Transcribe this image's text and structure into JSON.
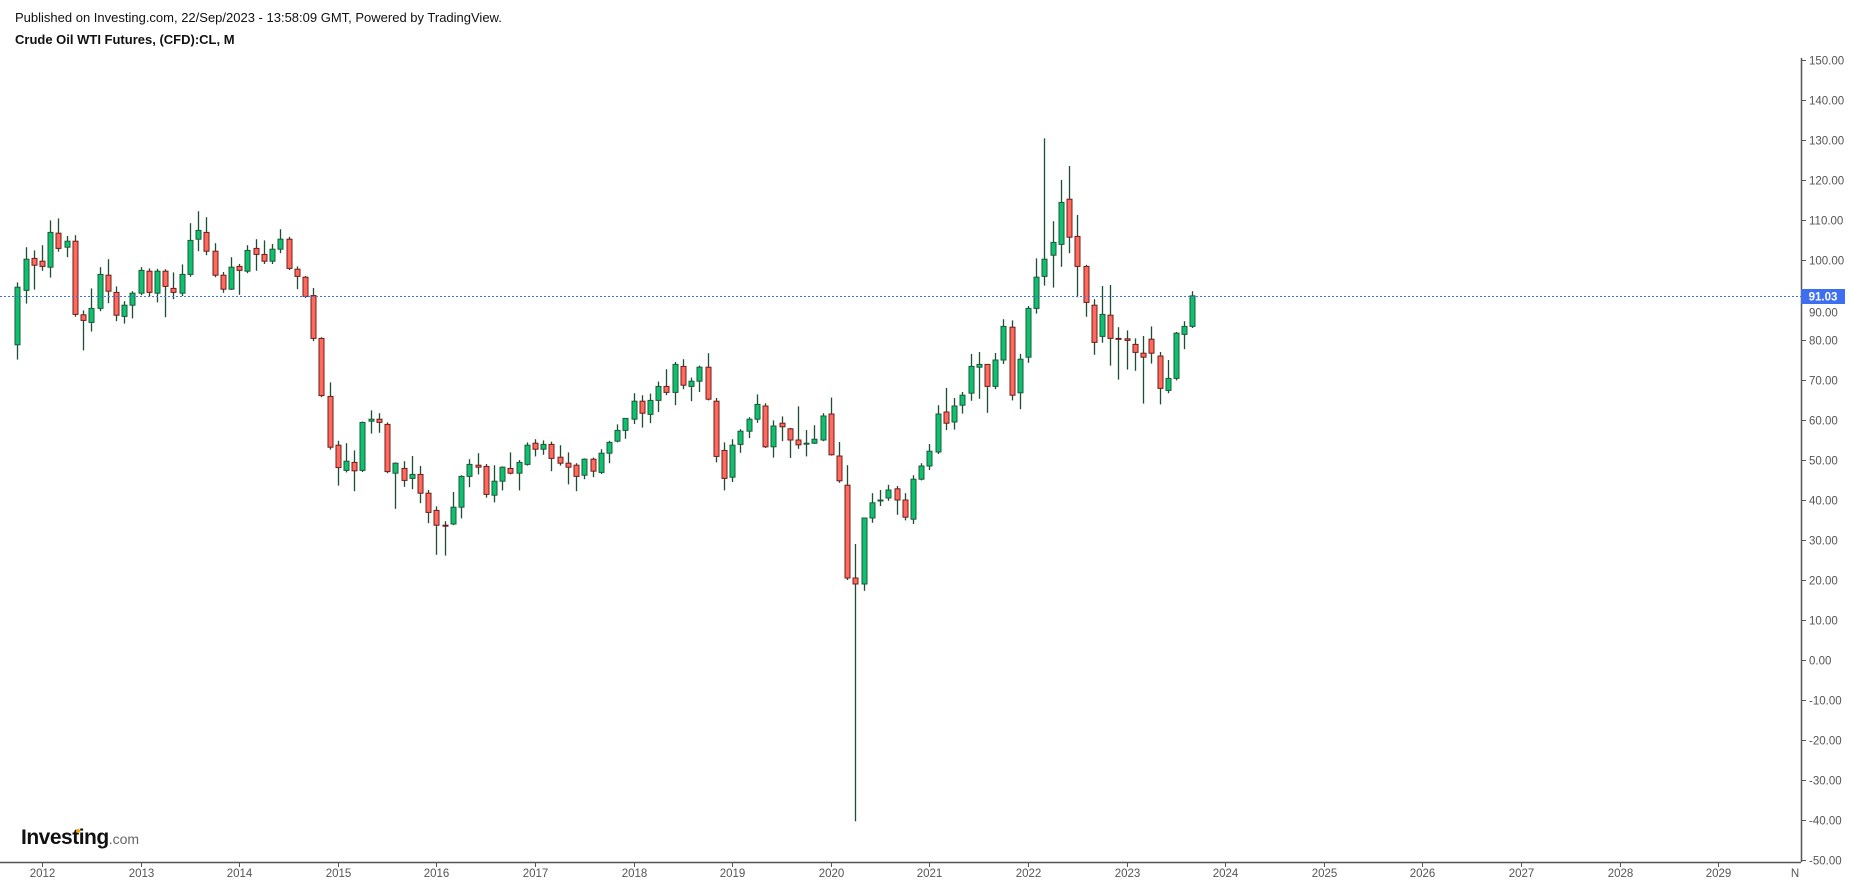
{
  "header": {
    "published": "Published on Investing.com, 22/Sep/2023 - 13:58:09 GMT, Powered by TradingView.",
    "title": "Crude Oil WTI Futures, (CFD):CL, M"
  },
  "logo": {
    "main": "Investing",
    "suffix": ".com"
  },
  "colors": {
    "up": "#0dc16f",
    "up_border": "#1a5a38",
    "down": "#ff6a5c",
    "down_border": "#6e1c1c",
    "wick": "#1d4f35",
    "price_line": "#3d6ff0"
  },
  "chart_data": {
    "type": "candlestick",
    "title": "Crude Oil WTI Futures, (CFD):CL, M",
    "interval": "monthly",
    "start": "2011-10",
    "ohlc_fields": [
      "open",
      "high",
      "low",
      "close"
    ],
    "ohlc": [
      [
        78.8,
        94.4,
        75.1,
        93.2
      ],
      [
        92.4,
        103.2,
        89.1,
        100.2
      ],
      [
        100.4,
        102.4,
        92.6,
        98.7
      ],
      [
        99.7,
        103.7,
        97.3,
        98.4
      ],
      [
        98.2,
        109.9,
        95.6,
        106.9
      ],
      [
        106.7,
        110.4,
        102.1,
        102.9
      ],
      [
        103.2,
        106.0,
        100.7,
        104.7
      ],
      [
        104.7,
        106.2,
        85.8,
        86.4
      ],
      [
        86.3,
        87.4,
        77.4,
        84.9
      ],
      [
        84.4,
        92.9,
        82.1,
        87.9
      ],
      [
        87.9,
        98.2,
        87.2,
        96.4
      ],
      [
        96.2,
        100.2,
        89.2,
        92.2
      ],
      [
        91.9,
        93.4,
        84.7,
        86.2
      ],
      [
        85.9,
        89.7,
        84.1,
        88.7
      ],
      [
        88.7,
        92.2,
        85.4,
        91.7
      ],
      [
        91.7,
        98.2,
        91.2,
        97.4
      ],
      [
        97.2,
        97.9,
        90.9,
        91.9
      ],
      [
        91.7,
        97.8,
        89.4,
        97.2
      ],
      [
        97.2,
        97.7,
        85.7,
        93.4
      ],
      [
        92.9,
        96.9,
        90.2,
        91.9
      ],
      [
        91.7,
        98.9,
        91.0,
        96.4
      ],
      [
        96.4,
        109.2,
        95.8,
        104.9
      ],
      [
        105.2,
        112.2,
        102.2,
        107.4
      ],
      [
        106.9,
        110.7,
        101.2,
        102.2
      ],
      [
        102.2,
        104.2,
        95.7,
        96.2
      ],
      [
        96.2,
        97.0,
        91.8,
        92.7
      ],
      [
        92.7,
        100.7,
        92.5,
        98.2
      ],
      [
        98.4,
        99.0,
        91.3,
        97.4
      ],
      [
        97.2,
        103.7,
        96.7,
        102.4
      ],
      [
        102.9,
        105.2,
        97.3,
        101.4
      ],
      [
        101.4,
        104.9,
        99.0,
        99.7
      ],
      [
        99.7,
        104.0,
        99.0,
        102.7
      ],
      [
        102.7,
        107.7,
        101.7,
        105.2
      ],
      [
        105.2,
        105.8,
        97.5,
        97.9
      ],
      [
        97.7,
        98.4,
        92.7,
        95.9
      ],
      [
        95.7,
        96.0,
        90.5,
        90.9
      ],
      [
        91.1,
        93.0,
        79.7,
        80.4
      ],
      [
        80.4,
        80.7,
        65.7,
        66.1
      ],
      [
        65.9,
        69.4,
        52.6,
        53.2
      ],
      [
        53.7,
        54.8,
        43.6,
        48.1
      ],
      [
        47.4,
        54.2,
        46.9,
        49.7
      ],
      [
        49.4,
        52.4,
        42.2,
        47.3
      ],
      [
        47.4,
        59.6,
        47.0,
        59.4
      ],
      [
        59.7,
        62.4,
        56.6,
        60.2
      ],
      [
        60.2,
        61.7,
        56.8,
        59.4
      ],
      [
        58.9,
        59.4,
        46.7,
        47.1
      ],
      [
        46.7,
        49.4,
        37.8,
        49.2
      ],
      [
        47.9,
        49.7,
        43.3,
        44.9
      ],
      [
        45.4,
        51.0,
        42.7,
        46.4
      ],
      [
        46.4,
        48.5,
        39.2,
        41.7
      ],
      [
        41.7,
        42.5,
        34.2,
        36.9
      ],
      [
        37.4,
        38.4,
        26.3,
        33.7
      ],
      [
        33.7,
        34.7,
        26.1,
        33.6
      ],
      [
        34.0,
        42.0,
        33.7,
        38.2
      ],
      [
        38.2,
        46.2,
        35.4,
        45.9
      ],
      [
        45.9,
        50.2,
        43.2,
        48.9
      ],
      [
        48.7,
        51.7,
        46.4,
        48.2
      ],
      [
        48.4,
        49.0,
        40.6,
        41.4
      ],
      [
        41.2,
        48.7,
        39.4,
        44.7
      ],
      [
        44.7,
        48.4,
        42.4,
        48.2
      ],
      [
        47.9,
        51.9,
        46.4,
        46.7
      ],
      [
        46.7,
        50.0,
        42.4,
        49.4
      ],
      [
        48.9,
        54.4,
        48.6,
        53.7
      ],
      [
        54.2,
        55.2,
        50.9,
        52.7
      ],
      [
        52.7,
        54.9,
        51.3,
        53.9
      ],
      [
        53.9,
        54.6,
        47.2,
        50.4
      ],
      [
        50.7,
        53.7,
        48.6,
        49.2
      ],
      [
        49.2,
        51.9,
        43.9,
        48.2
      ],
      [
        48.7,
        49.2,
        42.2,
        45.9
      ],
      [
        46.2,
        50.4,
        45.2,
        50.2
      ],
      [
        50.2,
        50.6,
        45.7,
        47.2
      ],
      [
        46.9,
        52.7,
        46.5,
        51.7
      ],
      [
        51.7,
        54.8,
        49.2,
        54.4
      ],
      [
        54.7,
        58.9,
        54.4,
        57.4
      ],
      [
        57.4,
        60.5,
        55.3,
        60.4
      ],
      [
        60.2,
        66.7,
        59.0,
        64.7
      ],
      [
        64.7,
        66.2,
        58.1,
        61.7
      ],
      [
        61.4,
        66.6,
        59.2,
        64.9
      ],
      [
        64.9,
        69.6,
        62.0,
        68.4
      ],
      [
        68.4,
        72.7,
        66.2,
        66.9
      ],
      [
        66.9,
        74.5,
        63.7,
        73.9
      ],
      [
        73.4,
        75.2,
        67.7,
        68.7
      ],
      [
        68.4,
        70.6,
        64.7,
        69.7
      ],
      [
        69.7,
        73.6,
        67.0,
        73.2
      ],
      [
        73.2,
        76.7,
        64.9,
        65.2
      ],
      [
        64.7,
        65.5,
        49.4,
        50.9
      ],
      [
        52.4,
        54.4,
        42.4,
        45.4
      ],
      [
        45.7,
        55.2,
        44.5,
        53.7
      ],
      [
        53.9,
        57.7,
        51.8,
        57.2
      ],
      [
        57.2,
        60.7,
        55.5,
        60.2
      ],
      [
        60.2,
        66.4,
        59.3,
        63.9
      ],
      [
        63.5,
        64.2,
        53.0,
        53.3
      ],
      [
        53.3,
        59.9,
        50.6,
        58.5
      ],
      [
        59.2,
        60.9,
        54.7,
        58.3
      ],
      [
        57.8,
        58.0,
        50.5,
        55.0
      ],
      [
        55.0,
        63.4,
        52.8,
        53.8
      ],
      [
        54.2,
        57.5,
        50.9,
        54.2
      ],
      [
        54.2,
        58.7,
        54.0,
        55.2
      ],
      [
        55.0,
        61.7,
        54.7,
        61.0
      ],
      [
        61.5,
        65.6,
        51.1,
        51.3
      ],
      [
        51.0,
        54.5,
        44.3,
        44.8
      ],
      [
        43.7,
        48.7,
        20.0,
        20.5
      ],
      [
        20.5,
        29.0,
        -40.3,
        19.0
      ],
      [
        19.0,
        35.5,
        17.3,
        35.5
      ],
      [
        35.5,
        41.7,
        34.3,
        39.3
      ],
      [
        39.8,
        42.5,
        38.5,
        40.0
      ],
      [
        40.5,
        43.8,
        39.8,
        42.5
      ],
      [
        42.8,
        43.5,
        36.3,
        40.0
      ],
      [
        40.0,
        41.7,
        34.9,
        35.7
      ],
      [
        35.2,
        46.2,
        34.0,
        45.2
      ],
      [
        45.2,
        49.2,
        44.9,
        48.5
      ],
      [
        48.5,
        54.0,
        47.5,
        52.2
      ],
      [
        52.0,
        63.7,
        51.5,
        61.5
      ],
      [
        62.0,
        68.0,
        57.5,
        59.2
      ],
      [
        59.5,
        65.5,
        57.6,
        63.5
      ],
      [
        63.7,
        67.0,
        61.6,
        66.2
      ],
      [
        66.7,
        76.5,
        64.8,
        73.4
      ],
      [
        73.2,
        77.0,
        65.3,
        73.9
      ],
      [
        73.9,
        74.0,
        61.8,
        68.4
      ],
      [
        68.4,
        76.75,
        67.7,
        75.0
      ],
      [
        75.0,
        85.2,
        74.0,
        83.4
      ],
      [
        83.2,
        84.9,
        64.9,
        66.2
      ],
      [
        66.8,
        76.5,
        62.7,
        75.2
      ],
      [
        75.7,
        88.5,
        74.3,
        87.9
      ],
      [
        87.9,
        100.4,
        86.6,
        95.7
      ],
      [
        95.9,
        130.4,
        93.6,
        100.2
      ],
      [
        101.2,
        109.7,
        93.1,
        104.4
      ],
      [
        103.9,
        120.0,
        98.3,
        114.4
      ],
      [
        115.2,
        123.5,
        101.7,
        105.7
      ],
      [
        105.9,
        111.25,
        90.7,
        98.4
      ],
      [
        98.4,
        98.8,
        85.8,
        89.4
      ],
      [
        88.7,
        90.2,
        76.3,
        79.4
      ],
      [
        80.9,
        93.5,
        79.3,
        86.4
      ],
      [
        86.2,
        93.75,
        73.6,
        80.4
      ],
      [
        80.4,
        83.2,
        70.1,
        80.3
      ],
      [
        80.3,
        82.4,
        72.6,
        79.9
      ],
      [
        78.9,
        80.4,
        72.3,
        76.9
      ],
      [
        76.7,
        81.0,
        64.1,
        75.7
      ],
      [
        80.2,
        83.4,
        74.1,
        76.7
      ],
      [
        76.0,
        77.0,
        63.9,
        67.9
      ],
      [
        67.4,
        75.0,
        66.7,
        70.4
      ],
      [
        70.4,
        82.0,
        69.9,
        81.7
      ],
      [
        81.4,
        84.7,
        77.7,
        83.4
      ],
      [
        83.4,
        92.2,
        83.0,
        91.03
      ]
    ],
    "last_price": 91.03,
    "last_price_label": "91.03",
    "ylim": [
      -50,
      150
    ],
    "y_ticks": [
      "150.00",
      "140.00",
      "130.00",
      "120.00",
      "110.00",
      "100.00",
      "90.00",
      "80.00",
      "70.00",
      "60.00",
      "50.00",
      "40.00",
      "30.00",
      "20.00",
      "10.00",
      "0.00",
      "-10.00",
      "-20.00",
      "-30.00",
      "-40.00",
      "-50.00"
    ],
    "x_ticks": [
      "2012",
      "2013",
      "2014",
      "2015",
      "2016",
      "2017",
      "2018",
      "2019",
      "2020",
      "2021",
      "2022",
      "2023",
      "2024",
      "2025",
      "2026",
      "2027",
      "2028",
      "2029",
      "N"
    ],
    "grid": false
  }
}
